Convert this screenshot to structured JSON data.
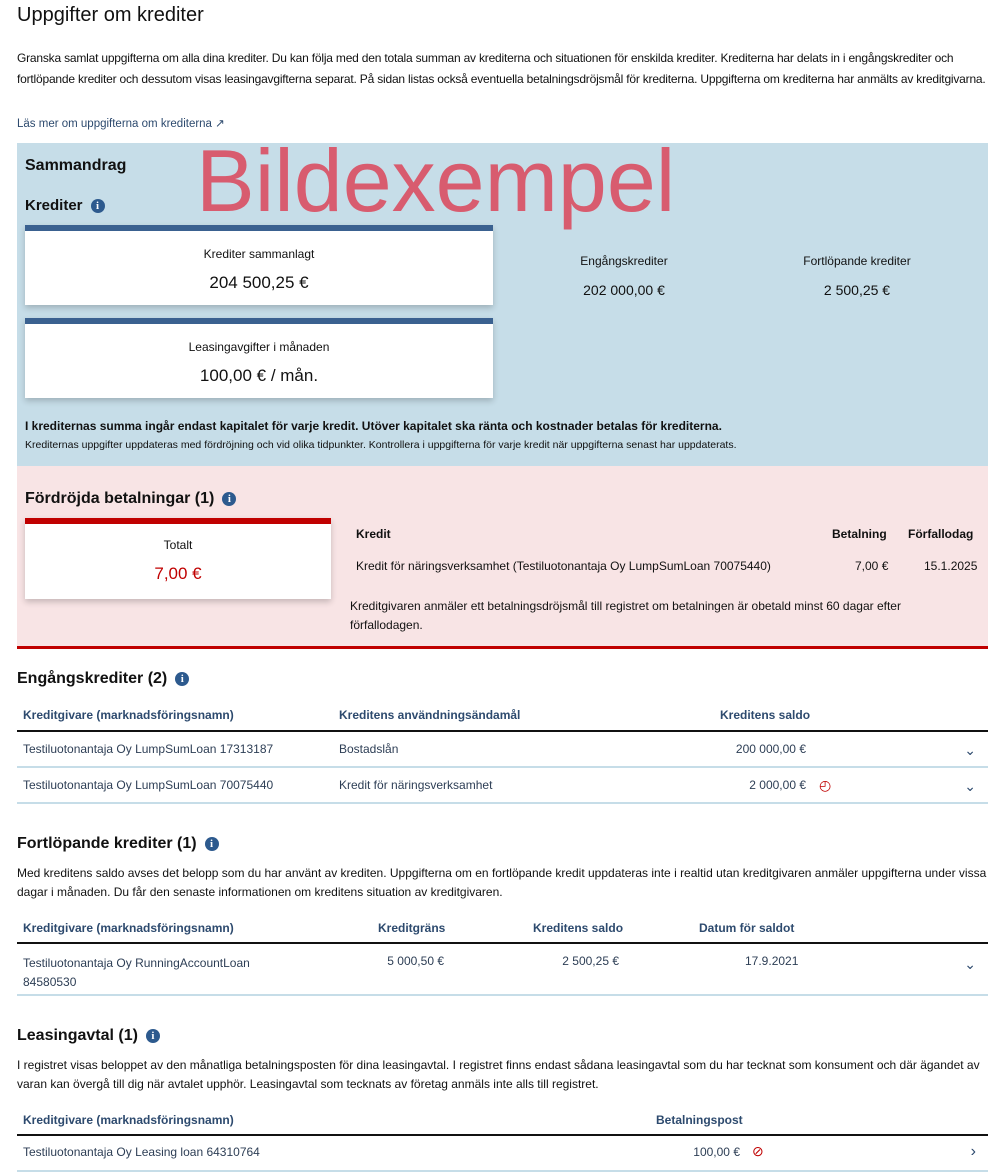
{
  "page": {
    "title": "Uppgifter om krediter",
    "intro": "Granska samlat uppgifterna om alla dina krediter. Du kan följa med den totala summan av krediterna och situationen för enskilda krediter. Krediterna har delats in i engångskrediter och fortlöpande krediter och dessutom visas leasingavgifterna separat. På sidan listas också eventuella betalningsdröjsmål för krediterna. Uppgifterna om krediterna har anmälts av kreditgivarna.",
    "link": "Läs mer om uppgifterna om krediterna",
    "watermark": "Bildexempel"
  },
  "summary": {
    "title": "Sammandrag",
    "credits_title": "Krediter",
    "total_label": "Krediter sammanlagt",
    "total_value": "204 500,25 €",
    "leasing_label": "Leasingavgifter i månaden",
    "leasing_value": "100,00 € / mån.",
    "one_time_label": "Engångskrediter",
    "one_time_value": "202 000,00 €",
    "running_label": "Fortlöpande krediter",
    "running_value": "2 500,25 €",
    "note_bold": "I krediternas summa ingår endast kapitalet för varje kredit. Utöver kapitalet ska ränta och kostnader betalas för krediterna.",
    "note": "Krediternas uppgifter uppdateras med fördröjning och vid olika tidpunkter. Kontrollera i uppgifterna för varje kredit när uppgifterna senast har uppdaterats."
  },
  "delayed": {
    "title": "Fördröjda betalningar (1)",
    "total_label": "Totalt",
    "total_value": "7,00 €",
    "headers": [
      "Kredit",
      "Betalning",
      "Förfallodag"
    ],
    "row": [
      "Kredit för näringsverksamhet (Testiluotonantaja Oy LumpSumLoan 70075440)",
      "7,00 €",
      "15.1.2025"
    ],
    "note": "Kreditgivaren anmäler ett betalningsdröjsmål till registret om betalningen är obetald minst 60 dagar efter förfallodagen."
  },
  "one_time": {
    "title": "Engångskrediter (2)",
    "headers": [
      "Kreditgivare (marknadsföringsnamn)",
      "Kreditens användningsändamål",
      "Kreditens saldo"
    ],
    "rows": [
      [
        "Testiluotonantaja Oy LumpSumLoan 17313187",
        "Bostadslån",
        "200 000,00 €"
      ],
      [
        "Testiluotonantaja Oy LumpSumLoan 70075440",
        "Kredit för näringsverksamhet",
        "2 000,00 €"
      ]
    ]
  },
  "running": {
    "title": "Fortlöpande krediter (1)",
    "desc": "Med kreditens saldo avses det belopp som du har använt av krediten. Uppgifterna om en fortlöpande kredit uppdateras inte i realtid utan kreditgivaren anmäler uppgifterna under vissa dagar i månaden. Du får den senaste informationen om kreditens situation av kreditgivaren.",
    "headers": [
      "Kreditgivare (marknadsföringsnamn)",
      "Kreditgräns",
      "Kreditens saldo",
      "Datum för saldot"
    ],
    "row": [
      "Testiluotonantaja Oy RunningAccountLoan 84580530",
      "5 000,50 €",
      "2 500,25 €",
      "17.9.2021"
    ]
  },
  "leasing": {
    "title": "Leasingavtal (1)",
    "desc": "I registret visas beloppet av den månatliga betalningsposten för dina leasingavtal. I registret finns endast sådana leasingavtal som du har tecknat som konsument och där ägandet av varan kan övergå till dig när avtalet upphör. Leasingavtal som tecknats av företag anmäls inte alls till registret.",
    "headers": [
      "Kreditgivare (marknadsföringsnamn)",
      "Betalningspost"
    ],
    "row": [
      "Testiluotonantaja Oy Leasing loan 64310764",
      "100,00 €"
    ]
  },
  "colors": {
    "accent": "#3a6190",
    "alert": "#c00000",
    "summary_bg": "#c6dde8",
    "delayed_bg": "#f8e4e5"
  }
}
